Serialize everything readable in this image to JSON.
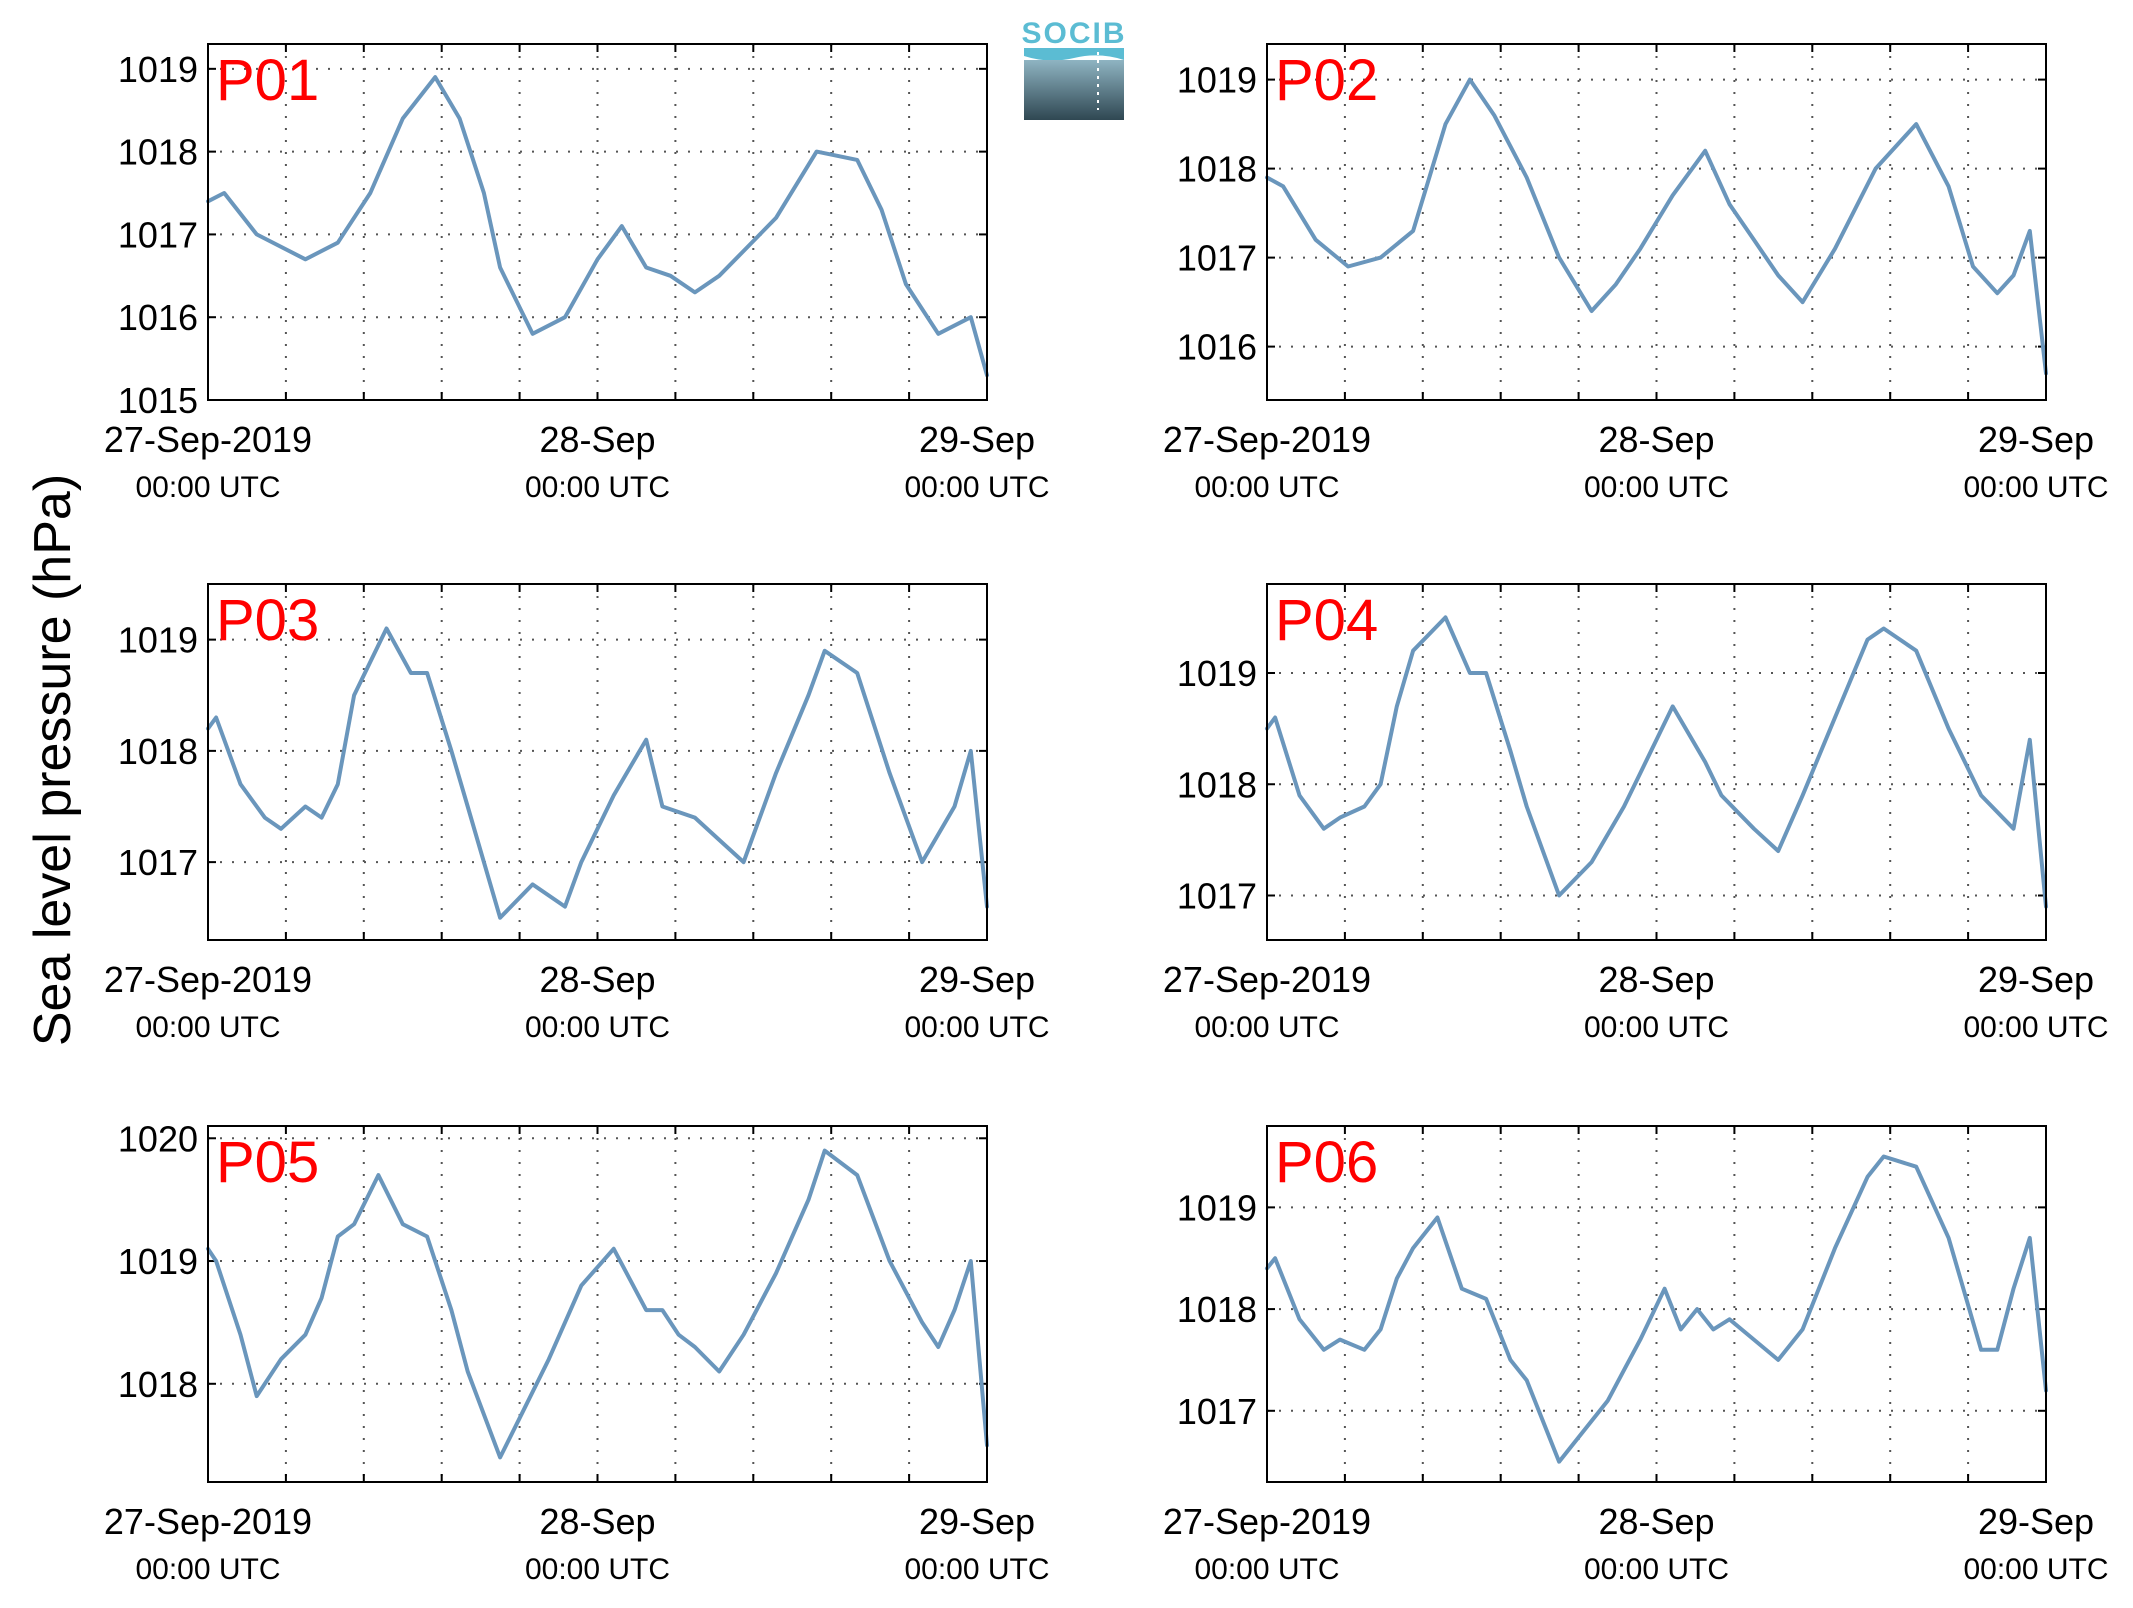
{
  "figure": {
    "ylabel": "Sea level pressure (hPa)",
    "logo_text": "SOCIB"
  },
  "colors": {
    "series": "#6a96bc",
    "panel_label": "#ff0000",
    "axis": "#000000",
    "grid": "#555555",
    "logo_top": "#5bbcd3",
    "logo_bottom": "#2f4752"
  },
  "chart_data": [
    {
      "type": "line",
      "panel": "P01",
      "xlim": [
        "2019-09-27 00:00",
        "2019-09-29 00:00"
      ],
      "ylim": [
        1015,
        1019.3
      ],
      "yticks": [
        1015,
        1016,
        1017,
        1018,
        1019
      ],
      "xticks": [
        {
          "line1": "27-Sep-2019",
          "line2": "00:00 UTC"
        },
        {
          "line1": "28-Sep",
          "line2": "00:00 UTC"
        },
        {
          "line1": "29-Sep",
          "line2": "00:00 UTC"
        }
      ],
      "grid": true,
      "x_hours": [
        0,
        1,
        3,
        6,
        8,
        10,
        12,
        14,
        15.5,
        17,
        18,
        20,
        22,
        24,
        25.5,
        27,
        28.5,
        30,
        31.5,
        33,
        35,
        37.5,
        40,
        41.5,
        43,
        45,
        47,
        48
      ],
      "values": [
        1017.4,
        1017.5,
        1017.0,
        1016.7,
        1016.9,
        1017.5,
        1018.4,
        1018.9,
        1018.4,
        1017.5,
        1016.6,
        1015.8,
        1016.0,
        1016.7,
        1017.1,
        1016.6,
        1016.5,
        1016.3,
        1016.5,
        1016.8,
        1017.2,
        1018.0,
        1017.9,
        1017.3,
        1016.4,
        1015.8,
        1016.0,
        1015.3
      ]
    },
    {
      "type": "line",
      "panel": "P02",
      "xlim": [
        "2019-09-27 00:00",
        "2019-09-29 00:00"
      ],
      "ylim": [
        1015.4,
        1019.4
      ],
      "yticks": [
        1016,
        1017,
        1018,
        1019
      ],
      "xticks": [
        {
          "line1": "27-Sep-2019",
          "line2": "00:00 UTC"
        },
        {
          "line1": "28-Sep",
          "line2": "00:00 UTC"
        },
        {
          "line1": "29-Sep",
          "line2": "00:00 UTC"
        }
      ],
      "grid": true,
      "x_hours": [
        0,
        1,
        3,
        5,
        7,
        9,
        11,
        12.5,
        14,
        16,
        18,
        20,
        21.5,
        23,
        25,
        27,
        28.5,
        30,
        31.5,
        33,
        35,
        37.5,
        40,
        42,
        43.5,
        45,
        46,
        47,
        48
      ],
      "values": [
        1017.9,
        1017.8,
        1017.2,
        1016.9,
        1017.0,
        1017.3,
        1018.5,
        1019.0,
        1018.6,
        1017.9,
        1017.0,
        1016.4,
        1016.7,
        1017.1,
        1017.7,
        1018.2,
        1017.6,
        1017.2,
        1016.8,
        1016.5,
        1017.1,
        1018.0,
        1018.5,
        1017.8,
        1016.9,
        1016.6,
        1016.8,
        1017.3,
        1015.7
      ]
    },
    {
      "type": "line",
      "panel": "P03",
      "xlim": [
        "2019-09-27 00:00",
        "2019-09-29 00:00"
      ],
      "ylim": [
        1016.3,
        1019.5
      ],
      "yticks": [
        1017,
        1018,
        1019
      ],
      "xticks": [
        {
          "line1": "27-Sep-2019",
          "line2": "00:00 UTC"
        },
        {
          "line1": "28-Sep",
          "line2": "00:00 UTC"
        },
        {
          "line1": "29-Sep",
          "line2": "00:00 UTC"
        }
      ],
      "grid": true,
      "x_hours": [
        0,
        0.5,
        2,
        3.5,
        4.5,
        6,
        7,
        8,
        9,
        11,
        12.5,
        13.5,
        15,
        16,
        18,
        20,
        22,
        23,
        25,
        27,
        28,
        30,
        31.5,
        33,
        35,
        37,
        38,
        40,
        42,
        44,
        46,
        47,
        48
      ],
      "values": [
        1018.2,
        1018.3,
        1017.7,
        1017.4,
        1017.3,
        1017.5,
        1017.4,
        1017.7,
        1018.5,
        1019.1,
        1018.7,
        1018.7,
        1018.0,
        1017.5,
        1016.5,
        1016.8,
        1016.6,
        1017.0,
        1017.6,
        1018.1,
        1017.5,
        1017.4,
        1017.2,
        1017.0,
        1017.8,
        1018.5,
        1018.9,
        1018.7,
        1017.8,
        1017.0,
        1017.5,
        1018.0,
        1016.6
      ]
    },
    {
      "type": "line",
      "panel": "P04",
      "xlim": [
        "2019-09-27 00:00",
        "2019-09-29 00:00"
      ],
      "ylim": [
        1016.6,
        1019.8
      ],
      "yticks": [
        1017,
        1018,
        1019
      ],
      "xticks": [
        {
          "line1": "27-Sep-2019",
          "line2": "00:00 UTC"
        },
        {
          "line1": "28-Sep",
          "line2": "00:00 UTC"
        },
        {
          "line1": "29-Sep",
          "line2": "00:00 UTC"
        }
      ],
      "grid": true,
      "x_hours": [
        0,
        0.5,
        2,
        3.5,
        4.5,
        6,
        7,
        8,
        9,
        11,
        12.5,
        13.5,
        15,
        16,
        18,
        20,
        22,
        23,
        25,
        27,
        28,
        30,
        31.5,
        33,
        35,
        37,
        38,
        40,
        42,
        44,
        46,
        47,
        48
      ],
      "values": [
        1018.5,
        1018.6,
        1017.9,
        1017.6,
        1017.7,
        1017.8,
        1018.0,
        1018.7,
        1019.2,
        1019.5,
        1019.0,
        1019.0,
        1018.3,
        1017.8,
        1017.0,
        1017.3,
        1017.8,
        1018.1,
        1018.7,
        1018.2,
        1017.9,
        1017.6,
        1017.4,
        1017.9,
        1018.6,
        1019.3,
        1019.4,
        1019.2,
        1018.5,
        1017.9,
        1017.6,
        1018.4,
        1016.9
      ]
    },
    {
      "type": "line",
      "panel": "P05",
      "xlim": [
        "2019-09-27 00:00",
        "2019-09-29 00:00"
      ],
      "ylim": [
        1017.2,
        1020.1
      ],
      "yticks": [
        1018,
        1019,
        1020
      ],
      "xticks": [
        {
          "line1": "27-Sep-2019",
          "line2": "00:00 UTC"
        },
        {
          "line1": "28-Sep",
          "line2": "00:00 UTC"
        },
        {
          "line1": "29-Sep",
          "line2": "00:00 UTC"
        }
      ],
      "grid": true,
      "x_hours": [
        0,
        0.5,
        2,
        3,
        4.5,
        6,
        7,
        8,
        9,
        10.5,
        12,
        13.5,
        15,
        16,
        18,
        19.5,
        21,
        23,
        25,
        27,
        28,
        29,
        30,
        31.5,
        33,
        35,
        37,
        38,
        40,
        42,
        44,
        45,
        46,
        47,
        48
      ],
      "values": [
        1019.1,
        1019.0,
        1018.4,
        1017.9,
        1018.2,
        1018.4,
        1018.7,
        1019.2,
        1019.3,
        1019.7,
        1019.3,
        1019.2,
        1018.6,
        1018.1,
        1017.4,
        1017.8,
        1018.2,
        1018.8,
        1019.1,
        1018.6,
        1018.6,
        1018.4,
        1018.3,
        1018.1,
        1018.4,
        1018.9,
        1019.5,
        1019.9,
        1019.7,
        1019.0,
        1018.5,
        1018.3,
        1018.6,
        1019.0,
        1017.5
      ]
    },
    {
      "type": "line",
      "panel": "P06",
      "xlim": [
        "2019-09-27 00:00",
        "2019-09-29 00:00"
      ],
      "ylim": [
        1016.3,
        1019.8
      ],
      "yticks": [
        1017,
        1018,
        1019
      ],
      "xticks": [
        {
          "line1": "27-Sep-2019",
          "line2": "00:00 UTC"
        },
        {
          "line1": "28-Sep",
          "line2": "00:00 UTC"
        },
        {
          "line1": "29-Sep",
          "line2": "00:00 UTC"
        }
      ],
      "grid": true,
      "x_hours": [
        0,
        0.5,
        2,
        3.5,
        4.5,
        6,
        7,
        8,
        9,
        10.5,
        12,
        13.5,
        15,
        16,
        18,
        19.5,
        21,
        22,
        23,
        24.5,
        25.5,
        26.5,
        27.5,
        28.5,
        30,
        31.5,
        33,
        35,
        37,
        38,
        40,
        42,
        44,
        45,
        46,
        47,
        48
      ],
      "values": [
        1018.4,
        1018.5,
        1017.9,
        1017.6,
        1017.7,
        1017.6,
        1017.8,
        1018.3,
        1018.6,
        1018.9,
        1018.2,
        1018.1,
        1017.5,
        1017.3,
        1016.5,
        1016.8,
        1017.1,
        1017.4,
        1017.7,
        1018.2,
        1017.8,
        1018.0,
        1017.8,
        1017.9,
        1017.7,
        1017.5,
        1017.8,
        1018.6,
        1019.3,
        1019.5,
        1019.4,
        1018.7,
        1017.6,
        1017.6,
        1018.2,
        1018.7,
        1017.2
      ]
    }
  ]
}
